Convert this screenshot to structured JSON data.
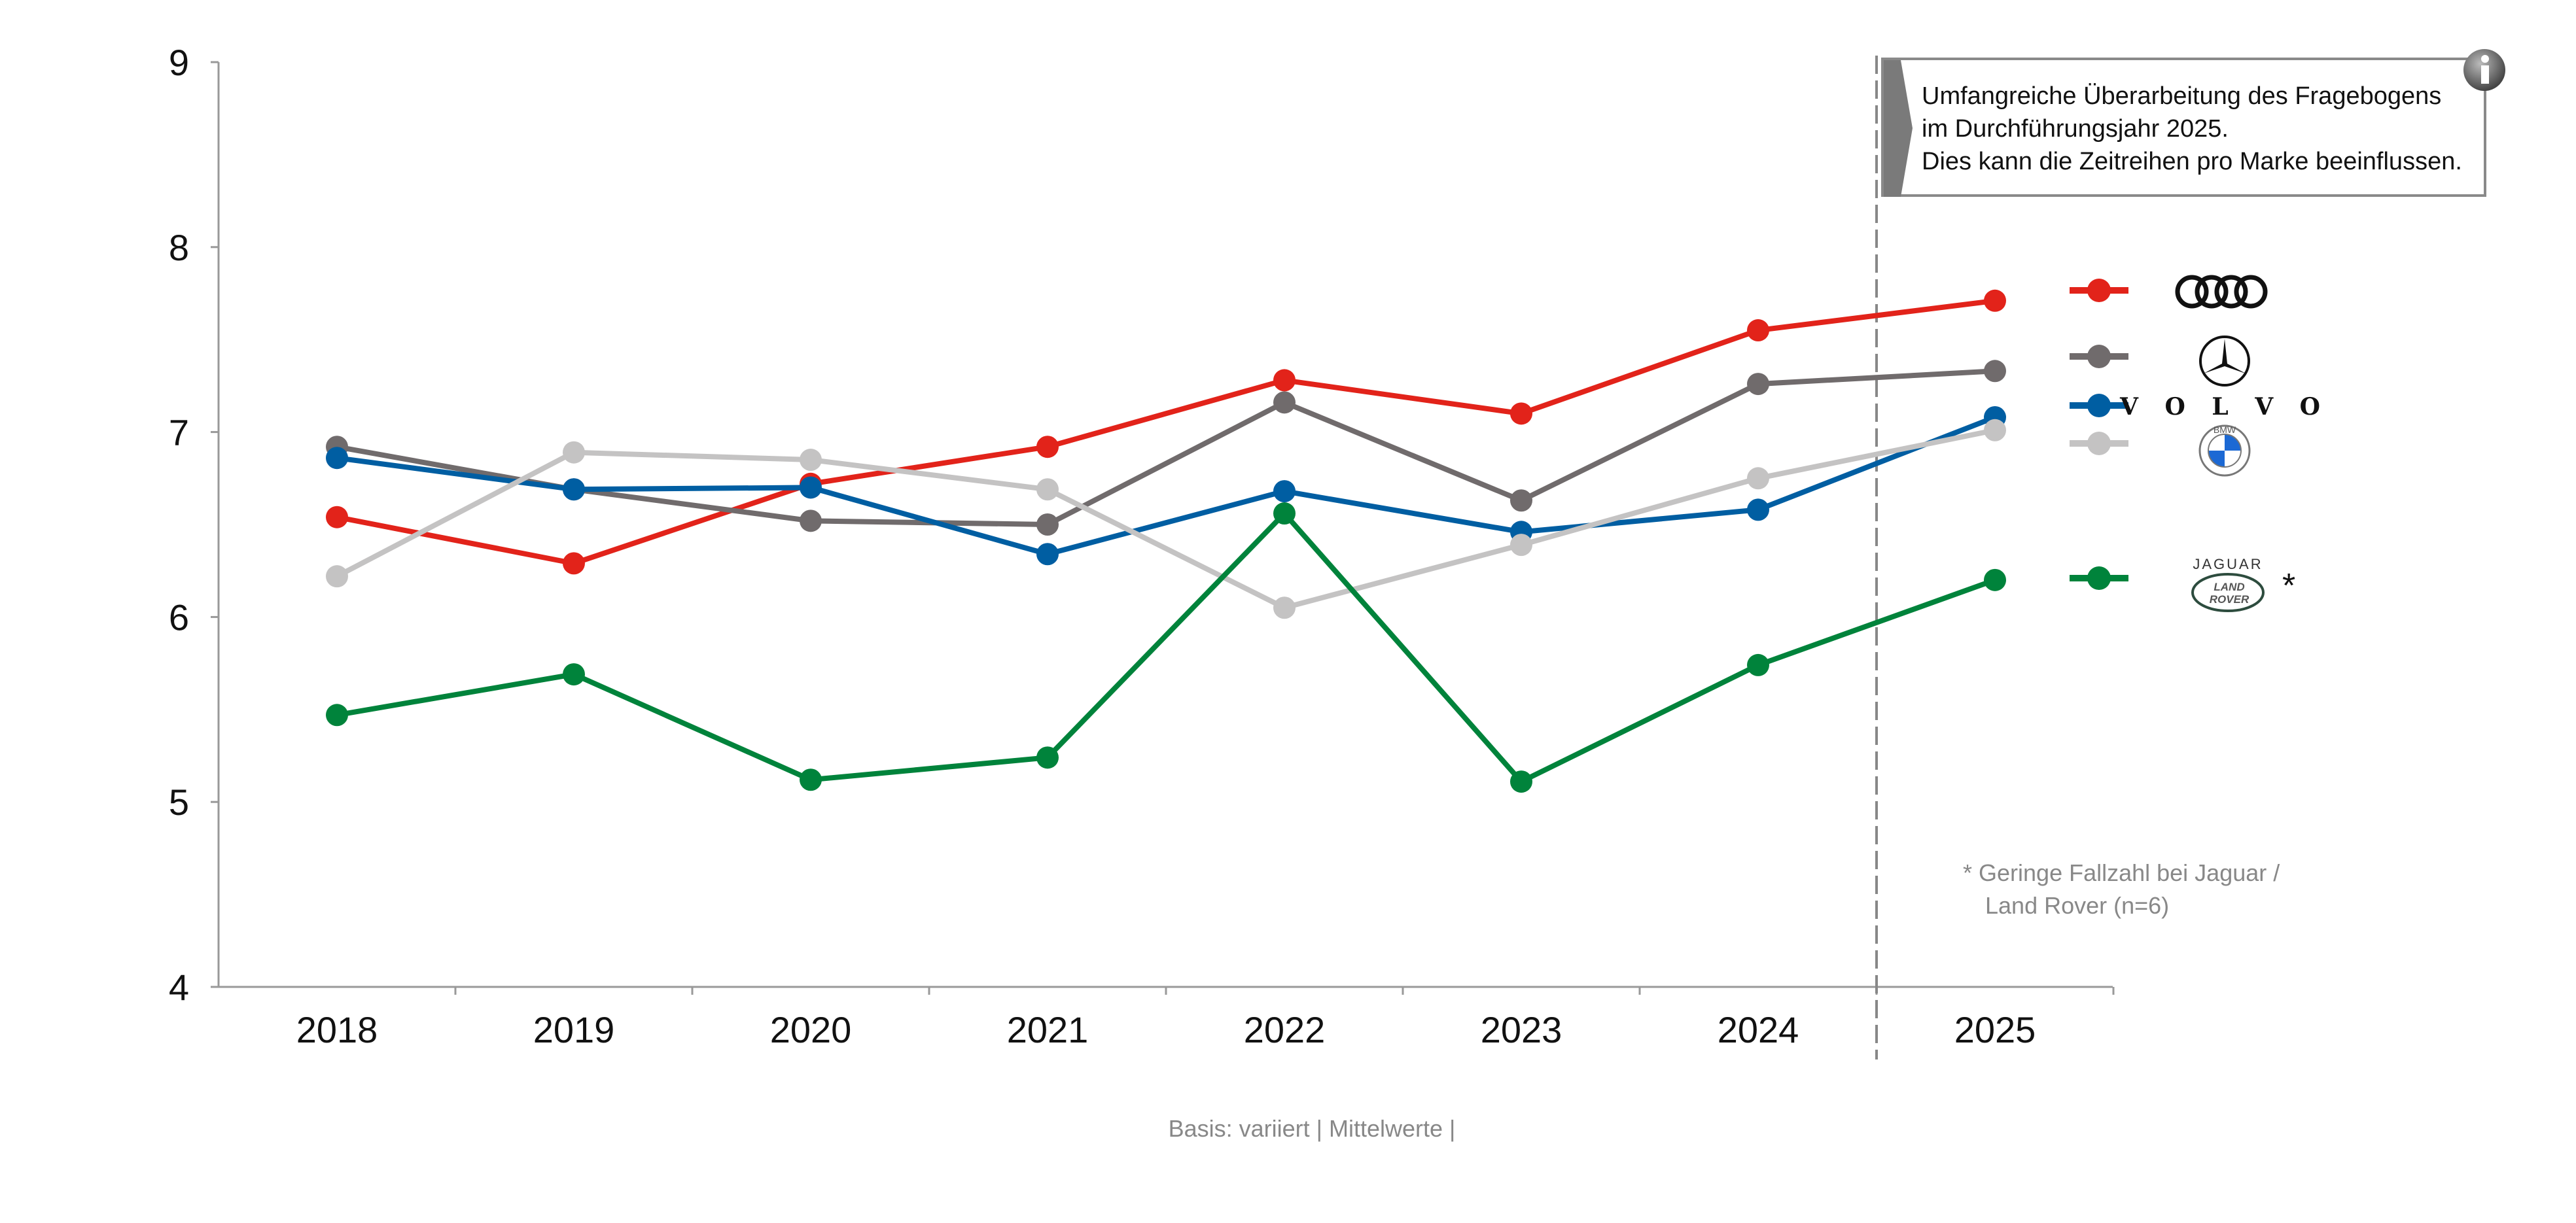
{
  "chart_data": {
    "type": "line",
    "title": "",
    "xlabel": "",
    "ylabel": "",
    "ylim": [
      4,
      9
    ],
    "yticks": [
      "4",
      "5",
      "6",
      "7",
      "8",
      "9"
    ],
    "categories": [
      "2018",
      "2019",
      "2020",
      "2021",
      "2022",
      "2023",
      "2024",
      "2025"
    ],
    "grid": false,
    "legend_placement": "right",
    "series": [
      {
        "name": "Audi",
        "color": "#e2231a",
        "values": [
          6.54,
          6.29,
          6.72,
          6.92,
          7.28,
          7.1,
          7.55,
          7.71
        ]
      },
      {
        "name": "Mercedes-Benz",
        "color": "#706b6c",
        "values": [
          6.92,
          6.69,
          6.52,
          6.5,
          7.16,
          6.63,
          7.26,
          7.33
        ]
      },
      {
        "name": "Volvo",
        "color": "#005ea2",
        "values": [
          6.86,
          6.69,
          6.7,
          6.34,
          6.68,
          6.46,
          6.58,
          7.08
        ]
      },
      {
        "name": "BMW",
        "color": "#c4c3c3",
        "values": [
          6.22,
          6.89,
          6.85,
          6.69,
          6.05,
          6.39,
          6.75,
          7.01
        ]
      },
      {
        "name": "Jaguar Land Rover",
        "color": "#00833b",
        "values": [
          5.47,
          5.69,
          5.12,
          5.24,
          6.56,
          5.11,
          5.74,
          6.2
        ]
      }
    ],
    "annotations": {
      "divider_after": "2024",
      "note_lines": [
        "Umfangreiche Überarbeitung des Fragebogens",
        "im Durchführungsjahr 2025.",
        "Dies kann die Zeitreihen pro Marke beeinflussen."
      ],
      "footnote_lines": [
        "* Geringe Fallzahl bei Jaguar /",
        "Land Rover (n=6)"
      ],
      "asterisk": "*",
      "basis": "Basis: variiert | Mittelwerte |"
    }
  },
  "logos": {
    "volvo": "V O L V O",
    "jaguar": "JAGUAR",
    "land_rover_1": "LAND",
    "land_rover_2": "ROVER",
    "bmw": "BMW"
  }
}
